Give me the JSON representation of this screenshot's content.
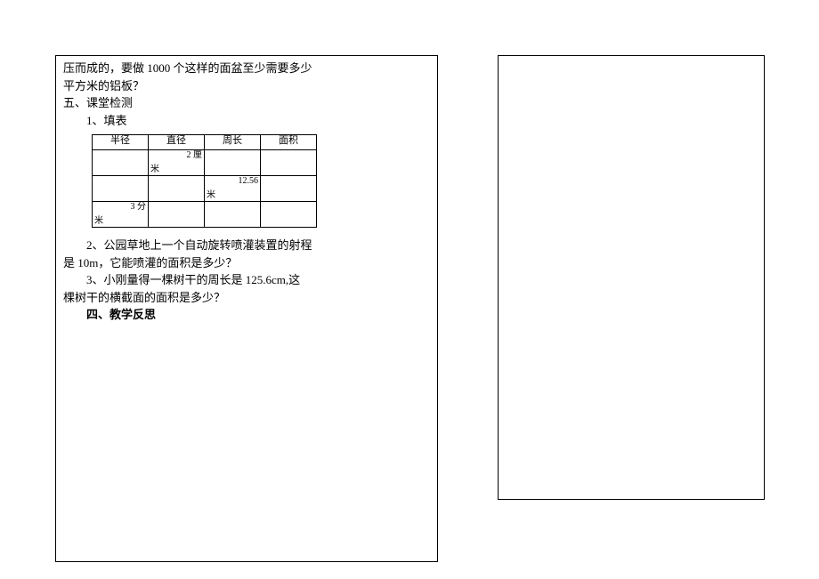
{
  "left": {
    "line1": "压而成的，要做 1000 个这样的面盆至少需要多少",
    "line2": "平方米的铝板？",
    "sec5": "五、课堂检测",
    "item1": "1、填表",
    "table": {
      "headers": [
        "半径",
        "直径",
        "周长",
        "面积"
      ],
      "rows": [
        {
          "c0_top": "",
          "c0_bot": "",
          "c1_top": "2 厘",
          "c1_bot": "米",
          "c2_top": "",
          "c2_bot": "",
          "c3_top": "",
          "c3_bot": ""
        },
        {
          "c0_top": "",
          "c0_bot": "",
          "c1_top": "",
          "c1_bot": "",
          "c2_top": "12.56",
          "c2_bot": "米",
          "c3_top": "",
          "c3_bot": ""
        },
        {
          "c0_top": "3 分",
          "c0_bot": "米",
          "c1_top": "",
          "c1_bot": "",
          "c2_top": "",
          "c2_bot": "",
          "c3_top": "",
          "c3_bot": ""
        }
      ]
    },
    "item2a": "2、公园草地上一个自动旋转喷灌装置的射程",
    "item2b": "是 10m，它能喷灌的面积是多少？",
    "item3a": "3、小刚量得一棵树干的周长是 125.6cm,这",
    "item3b": "棵树干的横截面的面积是多少？",
    "sec4": "四、教学反思"
  }
}
